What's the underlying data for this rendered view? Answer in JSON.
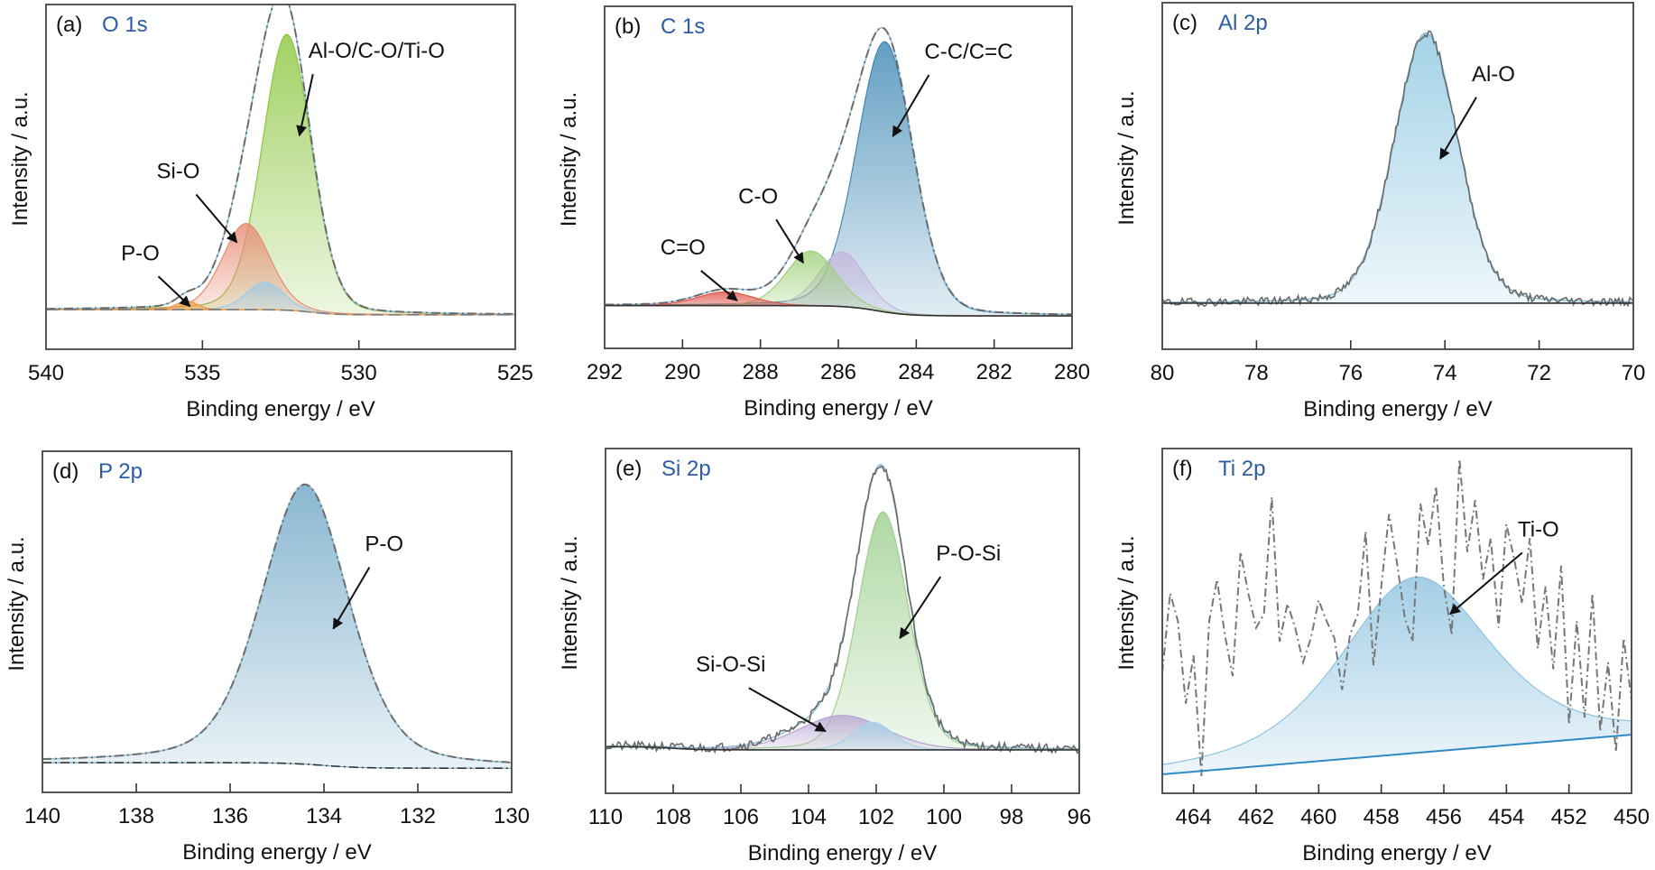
{
  "figure": {
    "title_color": "#2b5ca4"
  },
  "chart_data": [
    {
      "id": "a",
      "type": "area",
      "panel_letter": "(a)",
      "title": "O 1s",
      "xlabel": "Binding energy / eV",
      "ylabel": "Intensity / a.u.",
      "xlim": [
        540,
        525
      ],
      "ylim": [
        0,
        100
      ],
      "xticks": [
        540,
        535,
        530,
        525
      ],
      "baseline": {
        "start": 11.5,
        "end": 10.0,
        "step_center": 531.5
      },
      "envelope_style": "dashdot",
      "components": [
        {
          "name": "Al-O/C-O/Ti-O",
          "center": 532.3,
          "height": 80,
          "fwhm": 1.85,
          "color": "#8cc63f"
        },
        {
          "name": "Si-O",
          "center": 533.6,
          "height": 25,
          "fwhm": 1.8,
          "color": "#e98a74"
        },
        {
          "name": "P-O",
          "center": 535.5,
          "height": 2.5,
          "fwhm": 0.8,
          "color": "#f29a3a"
        },
        {
          "name": "",
          "center": 533.0,
          "height": 8,
          "fwhm": 1.4,
          "color": "#9fcbe6"
        }
      ],
      "annotations": [
        {
          "text": "Al-O/C-O/Ti-O",
          "target_x": 531.9,
          "target_y": 62
        },
        {
          "text": "Si-O",
          "target_x": 533.9,
          "target_y": 31
        },
        {
          "text": "P-O",
          "target_x": 535.4,
          "target_y": 12.5
        }
      ]
    },
    {
      "id": "b",
      "type": "area",
      "panel_letter": "(b)",
      "title": "C 1s",
      "xlabel": "Binding energy / eV",
      "ylabel": "Intensity / a.u.",
      "xlim": [
        292,
        280
      ],
      "ylim": [
        0,
        100
      ],
      "xticks": [
        292,
        290,
        288,
        286,
        284,
        282,
        280
      ],
      "baseline": {
        "start": 12.5,
        "end": 9.5,
        "step_center": 285.0
      },
      "envelope_style": "dashdot",
      "components": [
        {
          "name": "C-C/C=C",
          "center": 284.8,
          "height": 79,
          "fwhm": 1.7,
          "color": "#3f88b5"
        },
        {
          "name": "",
          "center": 285.9,
          "height": 16,
          "fwhm": 1.4,
          "color": "#c5b6dc"
        },
        {
          "name": "C-O",
          "center": 286.7,
          "height": 16,
          "fwhm": 1.5,
          "color": "#9fd07a"
        },
        {
          "name": "C=O",
          "center": 288.9,
          "height": 4,
          "fwhm": 1.7,
          "color": "#e0564a"
        }
      ],
      "annotations": [
        {
          "text": "C-C/C=C",
          "target_x": 284.6,
          "target_y": 62
        },
        {
          "text": "C-O",
          "target_x": 286.9,
          "target_y": 25
        },
        {
          "text": "C=O",
          "target_x": 288.6,
          "target_y": 14
        }
      ]
    },
    {
      "id": "c",
      "type": "area",
      "panel_letter": "(c)",
      "title": "Al 2p",
      "xlabel": "Binding energy  / eV",
      "ylabel": "Intensity / a.u.",
      "xlim": [
        80,
        70
      ],
      "ylim": [
        0,
        100
      ],
      "xticks": [
        80,
        78,
        76,
        74,
        72,
        70
      ],
      "baseline": {
        "start": 13.3,
        "end": 13.3,
        "step_center": 74.4
      },
      "envelope_style": "solid",
      "components": [
        {
          "name": "Al-O",
          "center": 74.4,
          "height": 78,
          "fwhm": 1.6,
          "color": "#8ec8e2"
        }
      ],
      "raw_noise": 1.2,
      "annotations": [
        {
          "text": "Al-O",
          "target_x": 74.1,
          "target_y": 55
        }
      ]
    },
    {
      "id": "d",
      "type": "area",
      "panel_letter": "(d)",
      "title": "P 2p",
      "xlabel": "Binding energy / eV",
      "ylabel": "Intensity / a.u.",
      "xlim": [
        140,
        130
      ],
      "ylim": [
        0,
        100
      ],
      "xticks": [
        140,
        138,
        136,
        134,
        132,
        130
      ],
      "baseline": {
        "start": 8.7,
        "end": 7.1,
        "step_center": 134.0
      },
      "envelope_style": "dashdot",
      "components": [
        {
          "name": "P-O",
          "center": 134.4,
          "height": 82,
          "fwhm": 2.2,
          "color": "#6fa7c7"
        }
      ],
      "annotations": [
        {
          "text": "P-O",
          "target_x": 133.8,
          "target_y": 48
        }
      ]
    },
    {
      "id": "e",
      "type": "area",
      "panel_letter": "(e)",
      "title": "Si 2p",
      "xlabel": "Binding energy / eV",
      "ylabel": "Intensity / a.u.",
      "xlim": [
        110,
        96
      ],
      "ylim": [
        0,
        100
      ],
      "xticks": [
        110,
        108,
        106,
        104,
        102,
        100,
        98,
        96
      ],
      "baseline": {
        "start": 13.5,
        "end": 12.6,
        "step_center": 108.0
      },
      "envelope_style": "solid",
      "components": [
        {
          "name": "P-O-Si",
          "center": 101.8,
          "height": 69,
          "fwhm": 1.75,
          "color": "#9ccf8e"
        },
        {
          "name": "Si-O-Si",
          "center": 103.0,
          "height": 10,
          "fwhm": 3.0,
          "color": "#b7a3d3"
        },
        {
          "name": "",
          "center": 102.1,
          "height": 8,
          "fwhm": 1.4,
          "color": "#a8d3ea"
        }
      ],
      "raw_noise": 1.3,
      "annotations": [
        {
          "text": "P-O-Si",
          "target_x": 101.3,
          "target_y": 45
        },
        {
          "text": "Si-O-Si",
          "target_x": 103.5,
          "target_y": 18
        }
      ]
    },
    {
      "id": "f",
      "type": "area",
      "panel_letter": "(f)",
      "title": "Ti 2p",
      "xlabel": "Binding energy / eV",
      "ylabel": "Intensity / a.u.",
      "xlim": [
        465,
        450
      ],
      "ylim": [
        0,
        100
      ],
      "xticks": [
        464,
        462,
        460,
        458,
        456,
        454,
        452,
        450
      ],
      "baseline": {
        "start": 5.5,
        "end": 17.0,
        "step_center": null
      },
      "envelope_style": "none",
      "components": [
        {
          "name": "Ti-O",
          "center": 456.9,
          "height": 51,
          "fwhm": 5.6,
          "color": "#8ec3e0"
        }
      ],
      "raw_x_start": 465,
      "raw_x_step": 0.25,
      "raw_values": [
        35,
        58,
        50,
        26,
        40,
        5,
        50,
        62,
        46,
        34,
        70,
        58,
        48,
        52,
        86,
        44,
        55,
        48,
        38,
        45,
        56,
        50,
        45,
        30,
        46,
        52,
        76,
        37,
        60,
        81,
        67,
        51,
        44,
        84,
        72,
        89,
        60,
        46,
        97,
        70,
        85,
        62,
        74,
        48,
        78,
        68,
        55,
        74,
        42,
        60,
        36,
        66,
        20,
        50,
        22,
        58,
        18,
        38,
        12,
        45,
        27
      ],
      "annotations": [
        {
          "text": "Ti-O",
          "target_x": 455.8,
          "target_y": 52
        }
      ]
    }
  ]
}
